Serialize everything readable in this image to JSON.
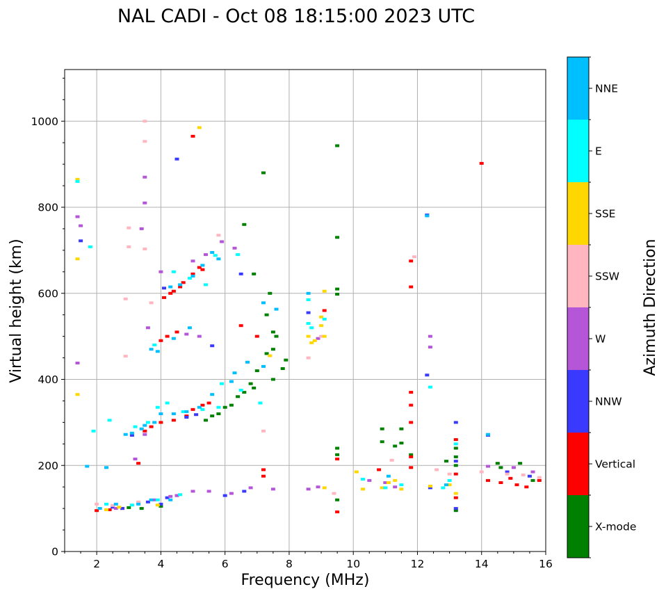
{
  "chart_data": {
    "type": "scatter",
    "title": "NAL CADI - Oct 08 18:15:00 2023 UTC",
    "xlabel": "Frequency (MHz)",
    "ylabel": "Virtual height (km)",
    "xlim": [
      1.0,
      16.0
    ],
    "ylim": [
      0,
      1120
    ],
    "xticks": [
      2,
      4,
      6,
      8,
      10,
      12,
      14,
      16
    ],
    "yticks": [
      0,
      200,
      400,
      600,
      800,
      1000
    ],
    "grid": true,
    "colorbar": {
      "title": "Azimuth Direction",
      "categories": [
        {
          "name": "X-mode",
          "color": "#008000"
        },
        {
          "name": "Vertical",
          "color": "#ff0000"
        },
        {
          "name": "NNW",
          "color": "#3a3aff"
        },
        {
          "name": "W",
          "color": "#b556d8"
        },
        {
          "name": "SSW",
          "color": "#ffb6c1"
        },
        {
          "name": "SSE",
          "color": "#ffd700"
        },
        {
          "name": "E",
          "color": "#00ffff"
        },
        {
          "name": "NNE",
          "color": "#00bfff"
        }
      ]
    },
    "series": [
      {
        "name": "X-mode",
        "points": [
          [
            9.5,
            943
          ],
          [
            9.5,
            730
          ],
          [
            7.2,
            880
          ],
          [
            6.6,
            760
          ],
          [
            6.9,
            645
          ],
          [
            7.4,
            600
          ],
          [
            7.3,
            550
          ],
          [
            7.5,
            510
          ],
          [
            7.6,
            500
          ],
          [
            7.5,
            470
          ],
          [
            7.3,
            460
          ],
          [
            7.8,
            425
          ],
          [
            7.9,
            445
          ],
          [
            7.5,
            400
          ],
          [
            7.0,
            420
          ],
          [
            6.9,
            380
          ],
          [
            6.8,
            390
          ],
          [
            6.6,
            370
          ],
          [
            6.4,
            360
          ],
          [
            6.2,
            340
          ],
          [
            6.0,
            335
          ],
          [
            5.8,
            320
          ],
          [
            5.6,
            315
          ],
          [
            5.4,
            305
          ],
          [
            9.5,
            610
          ],
          [
            9.5,
            598
          ],
          [
            9.5,
            240
          ],
          [
            9.5,
            225
          ],
          [
            9.5,
            120
          ],
          [
            10.9,
            285
          ],
          [
            10.9,
            255
          ],
          [
            11.3,
            245
          ],
          [
            11.5,
            285
          ],
          [
            11.5,
            252
          ],
          [
            11.8,
            225
          ],
          [
            12.9,
            210
          ],
          [
            13.2,
            240
          ],
          [
            13.2,
            220
          ],
          [
            13.2,
            200
          ],
          [
            13.2,
            95
          ],
          [
            14.5,
            205
          ],
          [
            14.6,
            195
          ],
          [
            15.2,
            205
          ],
          [
            15.6,
            165
          ],
          [
            4.0,
            105
          ],
          [
            3.4,
            100
          ],
          [
            3.0,
            102
          ]
        ]
      },
      {
        "name": "Vertical",
        "points": [
          [
            5.0,
            965
          ],
          [
            14.0,
            902
          ],
          [
            11.8,
            675
          ],
          [
            11.8,
            615
          ],
          [
            4.1,
            590
          ],
          [
            4.3,
            600
          ],
          [
            4.4,
            605
          ],
          [
            4.6,
            615
          ],
          [
            4.7,
            625
          ],
          [
            5.0,
            645
          ],
          [
            5.2,
            660
          ],
          [
            5.3,
            655
          ],
          [
            4.0,
            490
          ],
          [
            4.2,
            500
          ],
          [
            4.5,
            510
          ],
          [
            3.5,
            280
          ],
          [
            3.7,
            290
          ],
          [
            4.0,
            300
          ],
          [
            4.4,
            305
          ],
          [
            4.8,
            315
          ],
          [
            5.0,
            330
          ],
          [
            5.3,
            340
          ],
          [
            5.5,
            345
          ],
          [
            6.5,
            525
          ],
          [
            7.0,
            500
          ],
          [
            9.1,
            560
          ],
          [
            11.8,
            370
          ],
          [
            11.8,
            340
          ],
          [
            11.8,
            300
          ],
          [
            11.8,
            220
          ],
          [
            11.8,
            195
          ],
          [
            10.8,
            190
          ],
          [
            7.2,
            190
          ],
          [
            7.2,
            175
          ],
          [
            13.2,
            260
          ],
          [
            13.2,
            180
          ],
          [
            13.2,
            125
          ],
          [
            14.2,
            165
          ],
          [
            14.6,
            160
          ],
          [
            14.9,
            170
          ],
          [
            15.1,
            155
          ],
          [
            15.4,
            150
          ],
          [
            15.8,
            165
          ],
          [
            2.0,
            95
          ],
          [
            2.4,
            97
          ],
          [
            2.8,
            100
          ],
          [
            3.3,
            205
          ],
          [
            9.5,
            215
          ],
          [
            9.5,
            92
          ]
        ]
      },
      {
        "name": "NNW",
        "points": [
          [
            4.5,
            912
          ],
          [
            1.5,
            722
          ],
          [
            6.5,
            645
          ],
          [
            4.1,
            612
          ],
          [
            5.6,
            478
          ],
          [
            8.6,
            555
          ],
          [
            12.3,
            782
          ],
          [
            12.3,
            410
          ],
          [
            4.8,
            312
          ],
          [
            5.1,
            318
          ],
          [
            3.1,
            270
          ],
          [
            2.8,
            100
          ],
          [
            4.2,
            125
          ],
          [
            4.5,
            130
          ],
          [
            6.0,
            130
          ],
          [
            6.6,
            140
          ],
          [
            13.2,
            300
          ],
          [
            13.2,
            210
          ],
          [
            13.2,
            100
          ],
          [
            14.2,
            270
          ],
          [
            14.8,
            185
          ],
          [
            15.5,
            175
          ],
          [
            12.4,
            148
          ],
          [
            2.5,
            103
          ],
          [
            3.6,
            115
          ],
          [
            4.0,
            110
          ]
        ]
      },
      {
        "name": "W",
        "points": [
          [
            3.5,
            870
          ],
          [
            3.5,
            810
          ],
          [
            1.4,
            778
          ],
          [
            1.5,
            757
          ],
          [
            3.4,
            750
          ],
          [
            5.9,
            720
          ],
          [
            4.0,
            650
          ],
          [
            5.0,
            675
          ],
          [
            5.4,
            690
          ],
          [
            6.3,
            705
          ],
          [
            3.6,
            520
          ],
          [
            4.8,
            505
          ],
          [
            5.2,
            500
          ],
          [
            8.9,
            495
          ],
          [
            12.4,
            500
          ],
          [
            12.4,
            475
          ],
          [
            1.4,
            438
          ],
          [
            3.5,
            272
          ],
          [
            3.2,
            215
          ],
          [
            4.5,
            130
          ],
          [
            5.0,
            140
          ],
          [
            5.5,
            140
          ],
          [
            6.2,
            135
          ],
          [
            6.8,
            148
          ],
          [
            7.5,
            145
          ],
          [
            8.6,
            145
          ],
          [
            8.9,
            150
          ],
          [
            11.0,
            160
          ],
          [
            11.3,
            150
          ],
          [
            14.2,
            198
          ],
          [
            15.0,
            195
          ],
          [
            15.6,
            185
          ],
          [
            2.6,
            100
          ],
          [
            3.8,
            120
          ],
          [
            4.3,
            128
          ],
          [
            10.5,
            165
          ]
        ]
      },
      {
        "name": "SSW",
        "points": [
          [
            3.5,
            1000
          ],
          [
            3.5,
            953
          ],
          [
            3.0,
            752
          ],
          [
            3.0,
            708
          ],
          [
            3.5,
            703
          ],
          [
            5.8,
            735
          ],
          [
            2.9,
            587
          ],
          [
            3.7,
            578
          ],
          [
            2.9,
            454
          ],
          [
            7.2,
            280
          ],
          [
            8.6,
            450
          ],
          [
            9.0,
            500
          ],
          [
            11.2,
            212
          ],
          [
            11.9,
            685
          ],
          [
            12.6,
            190
          ],
          [
            13.0,
            180
          ],
          [
            14.0,
            185
          ],
          [
            14.8,
            180
          ],
          [
            15.3,
            178
          ],
          [
            15.8,
            172
          ],
          [
            2.0,
            110
          ],
          [
            2.5,
            107
          ],
          [
            3.3,
            115
          ],
          [
            9.4,
            135
          ]
        ]
      },
      {
        "name": "SSE",
        "points": [
          [
            5.2,
            985
          ],
          [
            1.4,
            865
          ],
          [
            1.4,
            680
          ],
          [
            1.4,
            365
          ],
          [
            8.6,
            500
          ],
          [
            8.7,
            485
          ],
          [
            8.8,
            490
          ],
          [
            9.0,
            545
          ],
          [
            9.0,
            525
          ],
          [
            9.1,
            500
          ],
          [
            9.1,
            605
          ],
          [
            9.1,
            148
          ],
          [
            10.1,
            185
          ],
          [
            10.3,
            145
          ],
          [
            10.9,
            148
          ],
          [
            11.1,
            160
          ],
          [
            11.3,
            165
          ],
          [
            11.5,
            145
          ],
          [
            12.4,
            152
          ],
          [
            13.0,
            155
          ],
          [
            13.2,
            135
          ],
          [
            7.4,
            455
          ],
          [
            2.3,
            97
          ],
          [
            2.7,
            103
          ],
          [
            3.9,
            108
          ]
        ]
      },
      {
        "name": "E",
        "points": [
          [
            1.4,
            860
          ],
          [
            1.8,
            708
          ],
          [
            4.4,
            650
          ],
          [
            4.9,
            635
          ],
          [
            5.4,
            620
          ],
          [
            5.7,
            688
          ],
          [
            6.4,
            690
          ],
          [
            8.6,
            585
          ],
          [
            8.6,
            530
          ],
          [
            8.7,
            520
          ],
          [
            9.1,
            540
          ],
          [
            12.4,
            382
          ],
          [
            3.8,
            480
          ],
          [
            4.2,
            345
          ],
          [
            5.9,
            390
          ],
          [
            6.5,
            375
          ],
          [
            7.1,
            345
          ],
          [
            1.9,
            280
          ],
          [
            2.4,
            305
          ],
          [
            3.2,
            290
          ],
          [
            3.6,
            300
          ],
          [
            3.9,
            335
          ],
          [
            4.7,
            325
          ],
          [
            5.3,
            330
          ],
          [
            5.8,
            335
          ],
          [
            13.2,
            250
          ],
          [
            13.0,
            165
          ],
          [
            12.8,
            148
          ],
          [
            10.3,
            168
          ],
          [
            11.0,
            148
          ],
          [
            11.5,
            155
          ],
          [
            2.3,
            110
          ],
          [
            3.1,
            108
          ],
          [
            3.9,
            120
          ],
          [
            4.6,
            132
          ]
        ]
      },
      {
        "name": "NNE",
        "points": [
          [
            7.2,
            578
          ],
          [
            7.6,
            563
          ],
          [
            8.6,
            600
          ],
          [
            12.3,
            780
          ],
          [
            14.2,
            272
          ],
          [
            3.4,
            285
          ],
          [
            3.5,
            293
          ],
          [
            3.8,
            300
          ],
          [
            4.0,
            320
          ],
          [
            4.4,
            320
          ],
          [
            4.8,
            325
          ],
          [
            5.2,
            335
          ],
          [
            5.6,
            365
          ],
          [
            6.2,
            395
          ],
          [
            6.3,
            415
          ],
          [
            6.7,
            440
          ],
          [
            7.2,
            430
          ],
          [
            3.1,
            275
          ],
          [
            2.9,
            272
          ],
          [
            4.3,
            615
          ],
          [
            4.6,
            620
          ],
          [
            5.0,
            640
          ],
          [
            5.3,
            665
          ],
          [
            5.6,
            695
          ],
          [
            5.8,
            680
          ],
          [
            3.9,
            465
          ],
          [
            4.4,
            495
          ],
          [
            4.9,
            520
          ],
          [
            3.7,
            470
          ],
          [
            1.7,
            198
          ],
          [
            2.3,
            195
          ],
          [
            2.1,
            100
          ],
          [
            2.6,
            110
          ],
          [
            3.3,
            110
          ],
          [
            3.7,
            120
          ],
          [
            4.3,
            120
          ],
          [
            11.1,
            175
          ],
          [
            12.9,
            155
          ]
        ]
      }
    ]
  }
}
